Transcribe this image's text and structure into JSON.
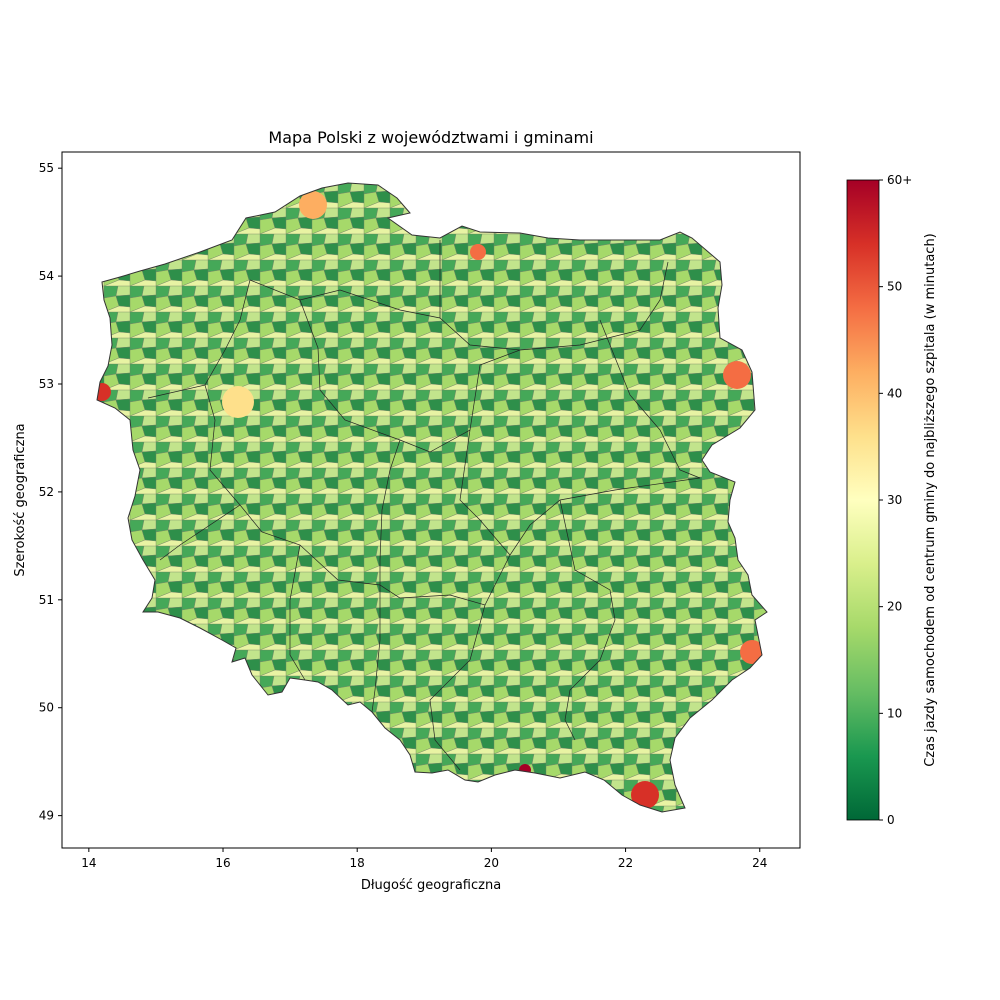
{
  "map": {
    "title": "Mapa Polski z województwami i gminami",
    "xlabel": "Długość geograficzna",
    "ylabel": "Szerokość geograficzna",
    "x_range": [
      13.6,
      24.6
    ],
    "y_range": [
      48.7,
      55.15
    ],
    "x_ticks": [
      "14",
      "16",
      "18",
      "20",
      "22",
      "24"
    ],
    "y_ticks": [
      "49",
      "50",
      "51",
      "52",
      "53",
      "54",
      "55"
    ],
    "colorbar": {
      "label": "Czas jazdy samochodem od centrum gminy do najbliższego szpitala (w minutach)",
      "ticks": [
        "0",
        "10",
        "20",
        "30",
        "40",
        "50",
        "60+"
      ],
      "range": [
        0,
        60
      ],
      "colormap": "RdYlGn_r",
      "colors": [
        "#006837",
        "#1a9850",
        "#66bd63",
        "#a6d96a",
        "#d9ef8b",
        "#ffffbf",
        "#fee08b",
        "#fdae61",
        "#f46d43",
        "#d73027",
        "#a50026"
      ]
    },
    "outline_color": "#000000",
    "voivodeship_border_color": "#000000"
  }
}
